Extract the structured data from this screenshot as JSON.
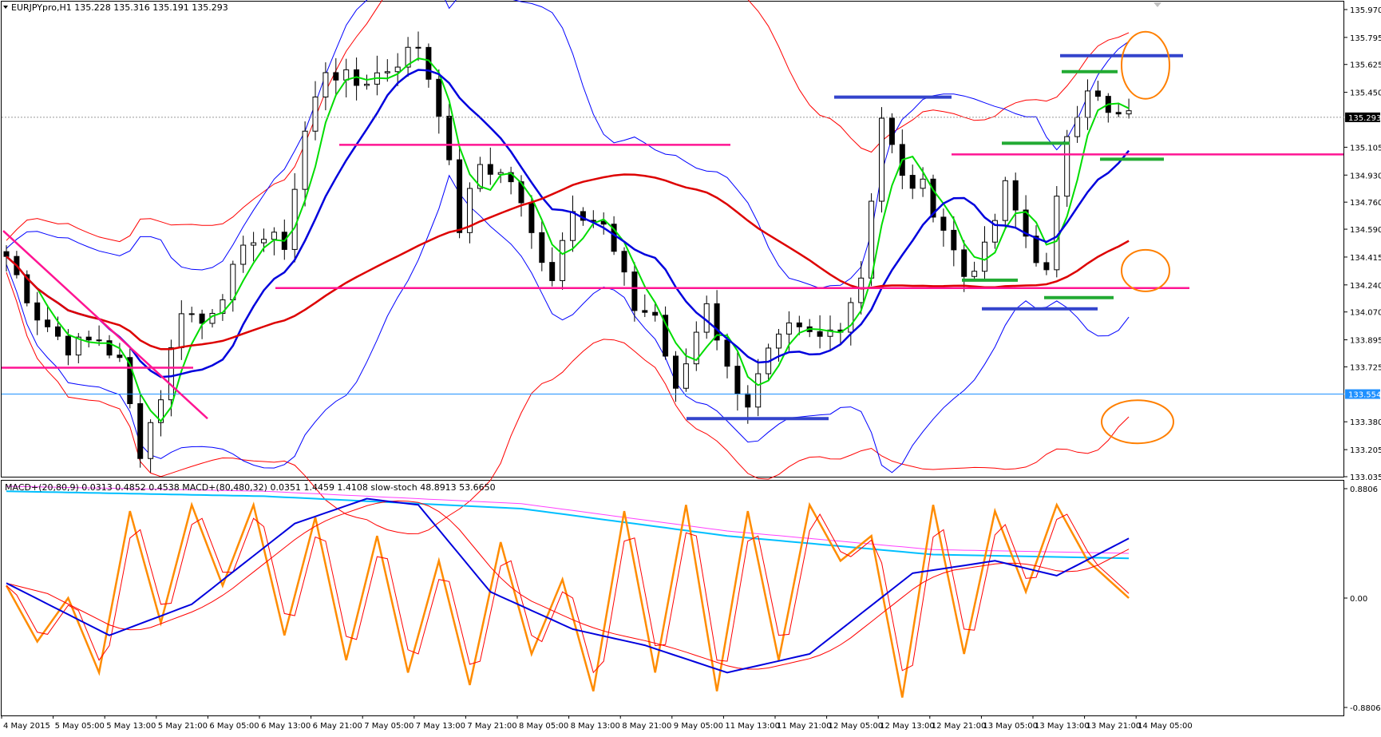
{
  "header": {
    "title_label": "EURJPYpro,H1  135.228 135.316 135.191 135.293",
    "indicator_label": "MACD+(20,80,9) 0.0313 0.4852 0.4538  MACD+(80,480,32) 0.0351 1.4459 1.4108  slow-stoch 48.8913 53.6650"
  },
  "price_panel": {
    "tick_labels": [
      "135.970",
      "135.795",
      "135.625",
      "135.450",
      "135.105",
      "134.930",
      "134.760",
      "134.590",
      "134.415",
      "134.240",
      "134.070",
      "133.895",
      "133.725",
      "133.380",
      "133.205",
      "133.035"
    ],
    "ymin": 133.035,
    "ymax": 136.02,
    "current_price_label": "135.293",
    "current_price": 135.293,
    "blue_line_label": "133.554",
    "blue_line_price": 133.554
  },
  "indicator_panel": {
    "tick_labels": [
      "0.8806",
      "0.00",
      "-0.8806"
    ],
    "ymax": 0.8806,
    "ymin": -0.8806
  },
  "x_axis": {
    "labels": [
      "4 May 2015",
      "5 May 05:00",
      "5 May 13:00",
      "5 May 21:00",
      "6 May 05:00",
      "6 May 13:00",
      "6 May 21:00",
      "7 May 05:00",
      "7 May 13:00",
      "7 May 21:00",
      "8 May 05:00",
      "8 May 13:00",
      "8 May 21:00",
      "9 May 05:00",
      "11 May 13:00",
      "11 May 21:00",
      "12 May 05:00",
      "12 May 13:00",
      "12 May 21:00",
      "13 May 05:00",
      "13 May 13:00",
      "13 May 21:00",
      "14 May 05:00"
    ]
  },
  "colors": {
    "upper_ema": "#ff0000",
    "fast_ma": "#00dd00",
    "mid_ma": "#0000dd",
    "slow_ma": "#dd0000",
    "bollinger": "#0000ff",
    "pink_level": "#ff1493",
    "blue_level": "#3344cc",
    "green_level": "#22aa33",
    "orange_marker": "#ff7f00",
    "horizontal_price": "#1e90ff",
    "macd_fast": "#0000dd",
    "macd_signal": "#ff0000",
    "macd_slow": "#00bfff",
    "macd_slow_signal": "#ff40ff",
    "stoch": "#ff8c00"
  },
  "chart_data": [
    {
      "type": "candlestick",
      "symbol": "EURJPYpro",
      "timeframe": "H1",
      "open": 135.228,
      "high": 135.316,
      "low": 135.191,
      "close": 135.293,
      "ylim": [
        133.035,
        136.02
      ],
      "price_path": [
        {
          "x": 0,
          "y": 134.42
        },
        {
          "x": 3,
          "y": 134.05
        },
        {
          "x": 6,
          "y": 133.85
        },
        {
          "x": 9,
          "y": 133.9
        },
        {
          "x": 11,
          "y": 133.75
        },
        {
          "x": 13,
          "y": 133.2
        },
        {
          "x": 15,
          "y": 133.55
        },
        {
          "x": 17,
          "y": 134.1
        },
        {
          "x": 19,
          "y": 134.0
        },
        {
          "x": 21,
          "y": 134.2
        },
        {
          "x": 24,
          "y": 134.55
        },
        {
          "x": 27,
          "y": 134.5
        },
        {
          "x": 29,
          "y": 135.2
        },
        {
          "x": 31,
          "y": 135.6
        },
        {
          "x": 34,
          "y": 135.5
        },
        {
          "x": 37,
          "y": 135.6
        },
        {
          "x": 40,
          "y": 135.75
        },
        {
          "x": 42,
          "y": 135.35
        },
        {
          "x": 44,
          "y": 134.6
        },
        {
          "x": 46,
          "y": 135.0
        },
        {
          "x": 49,
          "y": 134.9
        },
        {
          "x": 51,
          "y": 134.55
        },
        {
          "x": 53,
          "y": 134.3
        },
        {
          "x": 55,
          "y": 134.75
        },
        {
          "x": 58,
          "y": 134.6
        },
        {
          "x": 61,
          "y": 134.1
        },
        {
          "x": 63,
          "y": 134.05
        },
        {
          "x": 65,
          "y": 133.55
        },
        {
          "x": 68,
          "y": 134.15
        },
        {
          "x": 70,
          "y": 133.7
        },
        {
          "x": 72,
          "y": 133.5
        },
        {
          "x": 74,
          "y": 133.8
        },
        {
          "x": 76,
          "y": 133.95
        },
        {
          "x": 79,
          "y": 133.9
        },
        {
          "x": 81,
          "y": 134.0
        },
        {
          "x": 83,
          "y": 134.3
        },
        {
          "x": 85,
          "y": 135.3
        },
        {
          "x": 87,
          "y": 134.9
        },
        {
          "x": 89,
          "y": 134.85
        },
        {
          "x": 91,
          "y": 134.6
        },
        {
          "x": 93,
          "y": 134.3
        },
        {
          "x": 95,
          "y": 134.45
        },
        {
          "x": 97,
          "y": 134.85
        },
        {
          "x": 99,
          "y": 134.55
        },
        {
          "x": 101,
          "y": 134.3
        },
        {
          "x": 103,
          "y": 135.2
        },
        {
          "x": 105,
          "y": 135.5
        },
        {
          "x": 107,
          "y": 135.3
        },
        {
          "x": 109,
          "y": 135.29
        }
      ]
    },
    {
      "type": "line",
      "panel": "indicator",
      "ylim": [
        -0.8806,
        0.8806
      ],
      "series": [
        {
          "name": "MACD+(20,80,9)",
          "values": [
            {
              "x": 0,
              "y": 0.12
            },
            {
              "x": 10,
              "y": -0.3
            },
            {
              "x": 18,
              "y": -0.05
            },
            {
              "x": 28,
              "y": 0.6
            },
            {
              "x": 35,
              "y": 0.8
            },
            {
              "x": 40,
              "y": 0.75
            },
            {
              "x": 47,
              "y": 0.05
            },
            {
              "x": 55,
              "y": -0.25
            },
            {
              "x": 62,
              "y": -0.38
            },
            {
              "x": 70,
              "y": -0.6
            },
            {
              "x": 78,
              "y": -0.45
            },
            {
              "x": 88,
              "y": 0.2
            },
            {
              "x": 96,
              "y": 0.3
            },
            {
              "x": 102,
              "y": 0.18
            },
            {
              "x": 109,
              "y": 0.48
            }
          ]
        },
        {
          "name": "MACD+(80,480,32)",
          "values": [
            {
              "x": 0,
              "y": 0.86
            },
            {
              "x": 25,
              "y": 0.82
            },
            {
              "x": 50,
              "y": 0.72
            },
            {
              "x": 70,
              "y": 0.5
            },
            {
              "x": 90,
              "y": 0.35
            },
            {
              "x": 109,
              "y": 0.32
            }
          ]
        },
        {
          "name": "slow-stoch",
          "values": [
            {
              "x": 0,
              "y": 0.1
            },
            {
              "x": 3,
              "y": -0.35
            },
            {
              "x": 6,
              "y": 0.0
            },
            {
              "x": 9,
              "y": -0.6
            },
            {
              "x": 12,
              "y": 0.7
            },
            {
              "x": 15,
              "y": -0.2
            },
            {
              "x": 18,
              "y": 0.75
            },
            {
              "x": 21,
              "y": 0.1
            },
            {
              "x": 24,
              "y": 0.75
            },
            {
              "x": 27,
              "y": -0.3
            },
            {
              "x": 30,
              "y": 0.65
            },
            {
              "x": 33,
              "y": -0.5
            },
            {
              "x": 36,
              "y": 0.5
            },
            {
              "x": 39,
              "y": -0.6
            },
            {
              "x": 42,
              "y": 0.3
            },
            {
              "x": 45,
              "y": -0.7
            },
            {
              "x": 48,
              "y": 0.45
            },
            {
              "x": 51,
              "y": -0.45
            },
            {
              "x": 54,
              "y": 0.15
            },
            {
              "x": 57,
              "y": -0.75
            },
            {
              "x": 60,
              "y": 0.7
            },
            {
              "x": 63,
              "y": -0.6
            },
            {
              "x": 66,
              "y": 0.75
            },
            {
              "x": 69,
              "y": -0.75
            },
            {
              "x": 72,
              "y": 0.7
            },
            {
              "x": 75,
              "y": -0.5
            },
            {
              "x": 78,
              "y": 0.75
            },
            {
              "x": 81,
              "y": 0.3
            },
            {
              "x": 84,
              "y": 0.5
            },
            {
              "x": 87,
              "y": -0.8
            },
            {
              "x": 90,
              "y": 0.75
            },
            {
              "x": 93,
              "y": -0.45
            },
            {
              "x": 96,
              "y": 0.7
            },
            {
              "x": 99,
              "y": 0.05
            },
            {
              "x": 102,
              "y": 0.75
            },
            {
              "x": 105,
              "y": 0.3
            },
            {
              "x": 109,
              "y": 0.0
            }
          ]
        }
      ]
    }
  ]
}
